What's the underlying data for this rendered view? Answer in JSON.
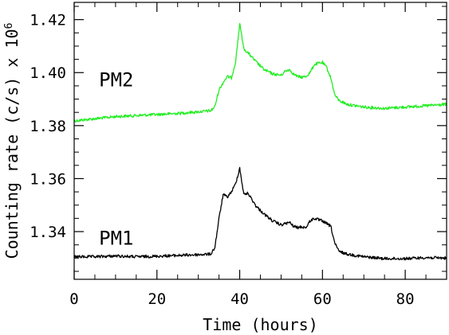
{
  "chart_data": {
    "type": "line",
    "title": "",
    "xlabel": "Time (hours)",
    "ylabel": "Counting rate (c/s) x 10",
    "ylabel_exponent": "6",
    "xlim": [
      0,
      90
    ],
    "ylim": [
      1.322,
      1.4265
    ],
    "x_ticks": [
      0,
      20,
      40,
      60,
      80
    ],
    "x_tick_labels": [
      "0",
      "20",
      "40",
      "60",
      "80"
    ],
    "y_ticks": [
      1.34,
      1.36,
      1.38,
      1.4,
      1.42
    ],
    "y_tick_labels": [
      "1.34",
      "1.36",
      "1.38",
      "1.40",
      "1.42"
    ],
    "grid": false,
    "legend": "none",
    "series": [
      {
        "name": "PM2",
        "color": "#22ee22",
        "x": [
          0,
          5,
          10,
          15,
          20,
          25,
          30,
          33,
          34,
          35,
          36,
          37,
          38,
          39,
          40,
          41,
          42,
          44,
          46,
          48,
          50,
          51,
          52,
          53,
          54,
          55,
          56,
          57,
          58,
          59,
          60,
          61,
          62,
          63,
          64,
          66,
          70,
          75,
          80,
          85,
          90
        ],
        "y": [
          1.3818,
          1.3826,
          1.3834,
          1.3838,
          1.3842,
          1.3846,
          1.3852,
          1.3856,
          1.3872,
          1.3935,
          1.3963,
          1.3985,
          1.398,
          1.404,
          1.4185,
          1.409,
          1.4075,
          1.404,
          1.401,
          1.3995,
          1.399,
          1.4005,
          1.4012,
          1.3995,
          1.3985,
          1.3983,
          1.3985,
          1.4,
          1.403,
          1.4035,
          1.4038,
          1.402,
          1.398,
          1.3915,
          1.3895,
          1.388,
          1.387,
          1.3865,
          1.387,
          1.3875,
          1.388
        ]
      },
      {
        "name": "PM1",
        "color": "#000000",
        "x": [
          0,
          5,
          10,
          15,
          20,
          25,
          30,
          33,
          34,
          35,
          36,
          37,
          38,
          39,
          40,
          41,
          42,
          44,
          46,
          48,
          50,
          51,
          52,
          53,
          54,
          55,
          56,
          57,
          58,
          59,
          60,
          61,
          62,
          63,
          64,
          66,
          70,
          75,
          80,
          85,
          90
        ],
        "y": [
          1.3305,
          1.3305,
          1.3308,
          1.3305,
          1.3307,
          1.331,
          1.3313,
          1.3315,
          1.334,
          1.345,
          1.354,
          1.353,
          1.355,
          1.358,
          1.364,
          1.354,
          1.3545,
          1.3495,
          1.3465,
          1.344,
          1.3425,
          1.343,
          1.3435,
          1.342,
          1.3415,
          1.3418,
          1.3415,
          1.344,
          1.345,
          1.3445,
          1.344,
          1.343,
          1.342,
          1.3355,
          1.3325,
          1.3315,
          1.3305,
          1.3298,
          1.3298,
          1.3302,
          1.33
        ]
      }
    ],
    "annotations": [
      {
        "text": "PM2",
        "x": 6,
        "y": 1.3975,
        "color": "#22ee22"
      },
      {
        "text": "PM1",
        "x": 6,
        "y": 1.3377,
        "color": "#000000"
      }
    ]
  }
}
